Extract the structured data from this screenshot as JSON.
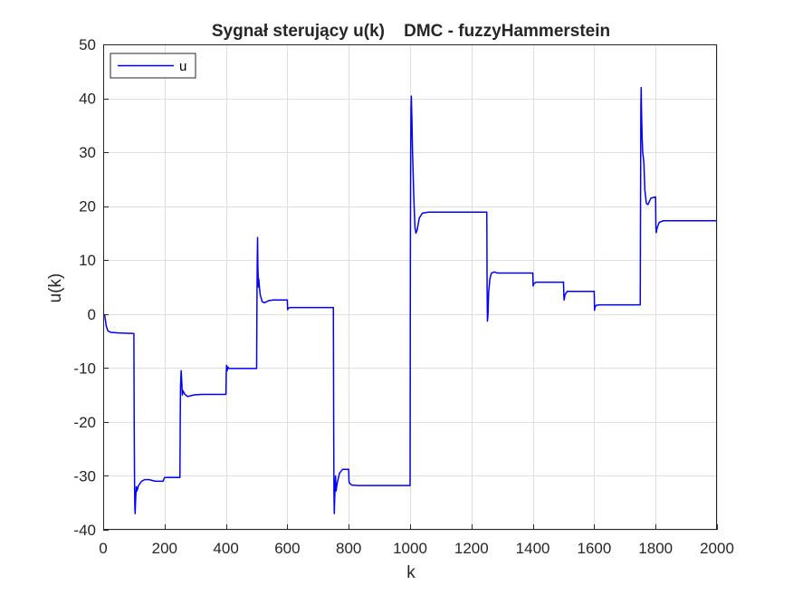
{
  "chart_data": {
    "type": "line",
    "title": "Sygnał sterujący u(k)    DMC - fuzzyHammerstein",
    "xlabel": "k",
    "ylabel": "u(k)",
    "xlim": [
      0,
      2000
    ],
    "ylim": [
      -40,
      50
    ],
    "xticks": [
      0,
      200,
      400,
      600,
      800,
      1000,
      1200,
      1400,
      1600,
      1800,
      2000
    ],
    "yticks": [
      -40,
      -30,
      -20,
      -10,
      0,
      10,
      20,
      30,
      40,
      50
    ],
    "grid": true,
    "legend": {
      "position": "top-left",
      "entries": [
        "u"
      ]
    },
    "series": [
      {
        "name": "u",
        "color": "#0000ff",
        "points": [
          [
            0,
            0
          ],
          [
            5,
            -0.3
          ],
          [
            10,
            -2.2
          ],
          [
            15,
            -3.1
          ],
          [
            25,
            -3.4
          ],
          [
            50,
            -3.5
          ],
          [
            100,
            -3.6
          ],
          [
            101,
            -20
          ],
          [
            102,
            -30
          ],
          [
            103,
            -35.5
          ],
          [
            104,
            -37
          ],
          [
            106,
            -34
          ],
          [
            108,
            -32
          ],
          [
            110,
            -32.8
          ],
          [
            115,
            -31.8
          ],
          [
            125,
            -31.0
          ],
          [
            135,
            -30.7
          ],
          [
            150,
            -30.7
          ],
          [
            170,
            -31.0
          ],
          [
            195,
            -31.0
          ],
          [
            200,
            -30.3
          ],
          [
            250,
            -30.3
          ],
          [
            251,
            -20
          ],
          [
            252,
            -13.5
          ],
          [
            254,
            -10.5
          ],
          [
            256,
            -12.5
          ],
          [
            258,
            -15
          ],
          [
            260,
            -14.2
          ],
          [
            265,
            -14.8
          ],
          [
            275,
            -15.3
          ],
          [
            295,
            -15.0
          ],
          [
            320,
            -14.9
          ],
          [
            400,
            -14.9
          ],
          [
            401,
            -11
          ],
          [
            402,
            -9.5
          ],
          [
            404,
            -10.5
          ],
          [
            406,
            -9.8
          ],
          [
            410,
            -10.1
          ],
          [
            500,
            -10.1
          ],
          [
            501,
            2
          ],
          [
            502,
            10
          ],
          [
            503,
            14.2
          ],
          [
            504,
            9
          ],
          [
            505,
            7
          ],
          [
            506,
            5
          ],
          [
            507,
            6.5
          ],
          [
            509,
            5
          ],
          [
            512,
            3.5
          ],
          [
            518,
            2.3
          ],
          [
            525,
            2.1
          ],
          [
            540,
            2.5
          ],
          [
            555,
            2.6
          ],
          [
            600,
            2.6
          ],
          [
            601,
            0.8
          ],
          [
            603,
            1.1
          ],
          [
            610,
            1.2
          ],
          [
            750,
            1.2
          ],
          [
            751,
            -20
          ],
          [
            752,
            -33
          ],
          [
            753,
            -37
          ],
          [
            755,
            -33
          ],
          [
            757,
            -30
          ],
          [
            759,
            -32.8
          ],
          [
            762,
            -31.5
          ],
          [
            770,
            -29.5
          ],
          [
            780,
            -28.8
          ],
          [
            800,
            -28.8
          ],
          [
            801,
            -31
          ],
          [
            803,
            -31.4
          ],
          [
            810,
            -31.7
          ],
          [
            830,
            -31.8
          ],
          [
            1000,
            -31.8
          ],
          [
            1001,
            10
          ],
          [
            1002,
            30
          ],
          [
            1003,
            38
          ],
          [
            1004,
            40.4
          ],
          [
            1006,
            36
          ],
          [
            1008,
            30
          ],
          [
            1012,
            22
          ],
          [
            1016,
            16
          ],
          [
            1019,
            15.0
          ],
          [
            1023,
            15.6
          ],
          [
            1030,
            17.8
          ],
          [
            1040,
            18.7
          ],
          [
            1060,
            18.9
          ],
          [
            1250,
            18.9
          ],
          [
            1251,
            5
          ],
          [
            1252,
            -1.3
          ],
          [
            1254,
            0
          ],
          [
            1256,
            4
          ],
          [
            1260,
            6.5
          ],
          [
            1265,
            7.6
          ],
          [
            1275,
            7.8
          ],
          [
            1285,
            7.6
          ],
          [
            1400,
            7.6
          ],
          [
            1401,
            5.2
          ],
          [
            1403,
            5.6
          ],
          [
            1410,
            5.9
          ],
          [
            1500,
            5.9
          ],
          [
            1501,
            3.5
          ],
          [
            1502,
            2.6
          ],
          [
            1505,
            3.6
          ],
          [
            1512,
            4.2
          ],
          [
            1600,
            4.2
          ],
          [
            1601,
            0.7
          ],
          [
            1602,
            1.2
          ],
          [
            1606,
            1.6
          ],
          [
            1615,
            1.7
          ],
          [
            1750,
            1.7
          ],
          [
            1751,
            20
          ],
          [
            1752,
            38
          ],
          [
            1753,
            42
          ],
          [
            1754,
            38
          ],
          [
            1756,
            33
          ],
          [
            1758,
            30
          ],
          [
            1762,
            28
          ],
          [
            1765,
            23
          ],
          [
            1770,
            20.5
          ],
          [
            1775,
            20.3
          ],
          [
            1785,
            21.5
          ],
          [
            1800,
            21.7
          ],
          [
            1801,
            16
          ],
          [
            1802,
            15.1
          ],
          [
            1805,
            16
          ],
          [
            1812,
            17
          ],
          [
            1825,
            17.3
          ],
          [
            2000,
            17.3
          ]
        ]
      }
    ]
  }
}
